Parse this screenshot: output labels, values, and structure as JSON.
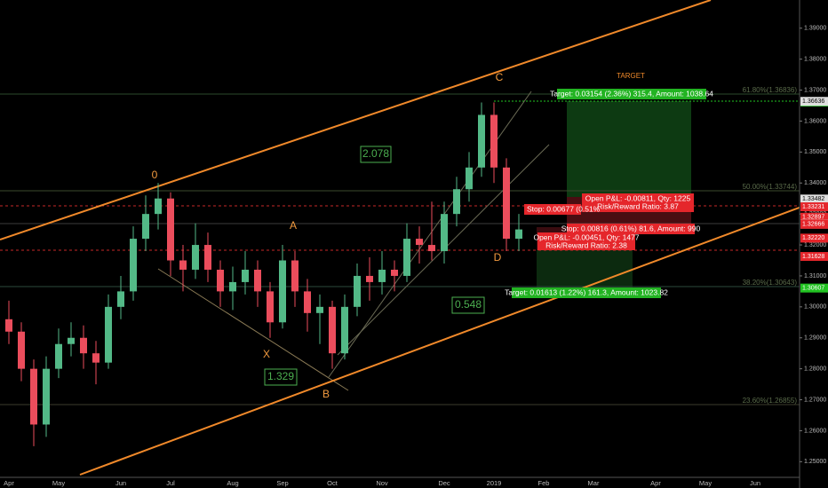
{
  "chart_data": {
    "type": "candlestick",
    "categories": [
      "Apr",
      null,
      null,
      null,
      "May",
      null,
      null,
      null,
      null,
      "Jun",
      null,
      null,
      null,
      "Jul",
      null,
      null,
      null,
      null,
      "Aug",
      null,
      null,
      null,
      "Sep",
      null,
      null,
      null,
      "Oct",
      null,
      null,
      null,
      "Nov",
      null,
      null,
      null,
      null,
      "Dec",
      null,
      null,
      null,
      "2019",
      null,
      null,
      null,
      "Feb",
      null,
      null,
      null,
      "Mar",
      null,
      null,
      null,
      null,
      "Apr",
      null,
      null,
      null,
      "May",
      null,
      null,
      null,
      "Jun",
      null,
      null,
      null
    ],
    "open": [
      1.296,
      1.292,
      1.28,
      1.262,
      1.28,
      1.288,
      1.29,
      1.285,
      1.282,
      1.3,
      1.305,
      1.322,
      1.33,
      1.335,
      1.315,
      1.312,
      1.32,
      1.312,
      1.305,
      1.308,
      1.312,
      1.305,
      1.295,
      1.315,
      1.305,
      1.298,
      1.3,
      1.285,
      1.3,
      1.31,
      1.308,
      1.312,
      1.31,
      1.322,
      1.32,
      1.318,
      1.33,
      1.338,
      1.345,
      1.362,
      1.345,
      1.322,
      null,
      null,
      null,
      null,
      null,
      null,
      null,
      null,
      null,
      null,
      null,
      null,
      null,
      null,
      null,
      null,
      null,
      null,
      null,
      null,
      null,
      null
    ],
    "high": [
      1.302,
      1.295,
      1.283,
      1.284,
      1.293,
      1.295,
      1.294,
      1.289,
      1.304,
      1.31,
      1.326,
      1.336,
      1.34,
      1.337,
      1.32,
      1.327,
      1.324,
      1.315,
      1.313,
      1.318,
      1.315,
      1.308,
      1.32,
      1.318,
      1.309,
      1.304,
      1.302,
      1.304,
      1.314,
      1.316,
      1.318,
      1.315,
      1.327,
      1.326,
      1.334,
      1.334,
      1.342,
      1.35,
      1.366,
      1.366,
      1.348,
      1.33,
      null,
      null,
      null,
      null,
      null,
      null,
      null,
      null,
      null,
      null,
      null,
      null,
      null,
      null,
      null,
      null,
      null,
      null,
      null,
      null,
      null,
      null
    ],
    "low": [
      1.288,
      1.276,
      1.255,
      1.258,
      1.277,
      1.284,
      1.28,
      1.275,
      1.28,
      1.296,
      1.302,
      1.318,
      1.325,
      1.31,
      1.305,
      1.309,
      1.308,
      1.3,
      1.299,
      1.304,
      1.3,
      1.29,
      1.293,
      1.3,
      1.292,
      1.288,
      1.28,
      1.283,
      1.297,
      1.302,
      1.304,
      1.305,
      1.308,
      1.314,
      1.315,
      1.314,
      1.326,
      1.334,
      1.342,
      1.34,
      1.318,
      1.318,
      null,
      null,
      null,
      null,
      null,
      null,
      null,
      null,
      null,
      null,
      null,
      null,
      null,
      null,
      null,
      null,
      null,
      null,
      null,
      null,
      null,
      null
    ],
    "close": [
      1.292,
      1.28,
      1.262,
      1.28,
      1.288,
      1.29,
      1.285,
      1.282,
      1.3,
      1.305,
      1.322,
      1.33,
      1.335,
      1.315,
      1.312,
      1.32,
      1.312,
      1.305,
      1.308,
      1.312,
      1.305,
      1.295,
      1.315,
      1.305,
      1.298,
      1.3,
      1.285,
      1.3,
      1.31,
      1.308,
      1.312,
      1.31,
      1.322,
      1.32,
      1.318,
      1.33,
      1.338,
      1.345,
      1.362,
      1.345,
      1.322,
      1.325,
      null,
      null,
      null,
      null,
      null,
      null,
      null,
      null,
      null,
      null,
      null,
      null,
      null,
      null,
      null,
      null,
      null,
      null,
      null,
      null,
      null,
      null
    ],
    "up_color": "#53b987",
    "down_color": "#eb4d5c",
    "ylim": [
      1.2415,
      1.3991
    ],
    "yticks": [
      {
        "value": 1.25,
        "label": "1.25000"
      },
      {
        "value": 1.26,
        "label": "1.26000"
      },
      {
        "value": 1.27,
        "label": "1.27000"
      },
      {
        "value": 1.28,
        "label": "1.28000"
      },
      {
        "value": 1.29,
        "label": "1.29000"
      },
      {
        "value": 1.3,
        "label": "1.30000"
      },
      {
        "value": 1.31,
        "label": "1.31000"
      },
      {
        "value": 1.32,
        "label": "1.32000"
      },
      {
        "value": 1.33,
        "label": "1.33000"
      },
      {
        "value": 1.34,
        "label": "1.34000"
      },
      {
        "value": 1.35,
        "label": "1.35000"
      },
      {
        "value": 1.36,
        "label": "1.36000"
      },
      {
        "value": 1.37,
        "label": "1.37000"
      },
      {
        "value": 1.38,
        "label": "1.38000"
      },
      {
        "value": 1.39,
        "label": "1.39000"
      }
    ],
    "price_tags": [
      {
        "value": 1.36615,
        "label": "1.36615",
        "color": "#22c322"
      },
      {
        "value": 1.36636,
        "label": "1.36636",
        "color": "#e0e0e0"
      },
      {
        "value": 1.33482,
        "label": "1.33482",
        "color": "#e0e0e0"
      },
      {
        "value": 1.33231,
        "label": "1.33231",
        "color": "#e5262b"
      },
      {
        "value": 1.32897,
        "label": "1.32897",
        "color": "#e5262b"
      },
      {
        "value": 1.32671,
        "label": "1.32671",
        "color": "#e0e0e0"
      },
      {
        "value": 1.32666,
        "label": "1.32666",
        "color": "#e5262b"
      },
      {
        "value": 1.3222,
        "label": "1.32220",
        "color": "#e5262b"
      },
      {
        "value": 1.31628,
        "label": "1.31628",
        "color": "#e5262b"
      },
      {
        "value": 1.30607,
        "label": "1.30607",
        "color": "#22c322"
      }
    ],
    "wave_labels": [
      "0",
      "A",
      "X",
      "B",
      "C",
      "D"
    ],
    "ratio_labels": [
      "2.078",
      "1.329",
      "0.548"
    ],
    "fib_labels": [
      "61.80%(1.36836)",
      "50.00%(1.33744)",
      "38.20%(1.30643)",
      "23.60%(1.26855)"
    ],
    "target_label": "TARGET",
    "position_labels": [
      "Target: 0.03154 (2.36%) 315.4, Amount: 1038.64",
      "Open P&L: -0.00811, Qty: 1225",
      "Risk/Reward Ratio: 3.87",
      "Stop: 0.00677 (0.51%",
      "Stop: 0.00816 (0.61%) 81.6, Amount: 990",
      "Open P&L: -0.00451, Qty: 1477",
      "Risk/Reward Ratio: 2.38",
      "Target: 0.01613 (1.22%) 161.3, Amount: 1023.82"
    ]
  }
}
